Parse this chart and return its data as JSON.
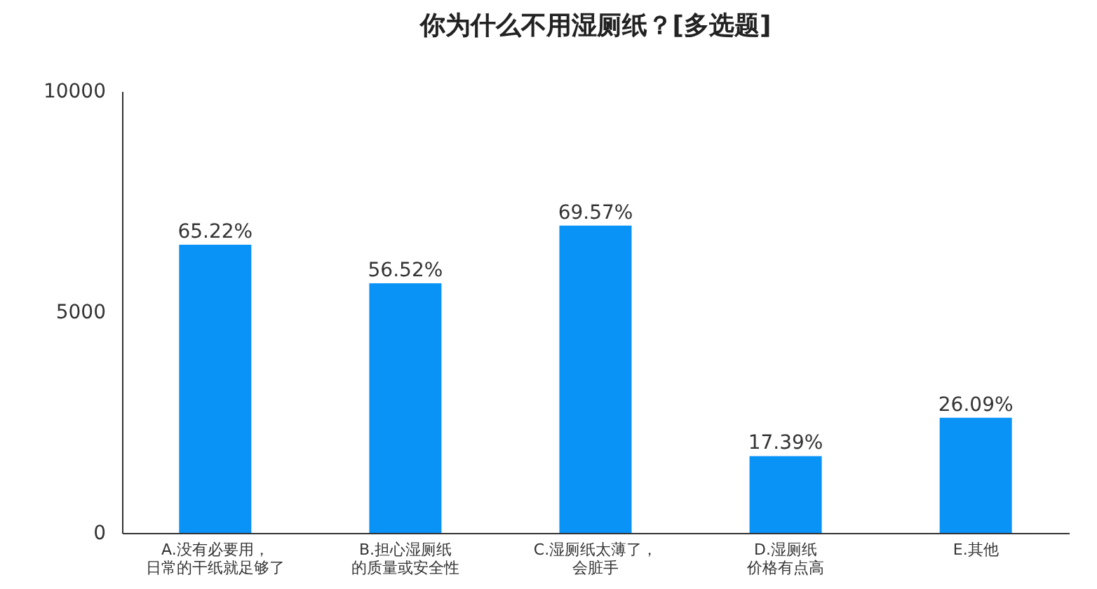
{
  "chart_data": {
    "type": "bar",
    "title": "你为什么不用湿厕纸？[多选题]",
    "categories": [
      "A.没有必要用，日常的干纸就足够了",
      "B.担心湿厕纸的质量或安全性",
      "C.湿厕纸太薄了，会脏手",
      "D.湿厕纸价格有点高",
      "E.其他"
    ],
    "values": [
      6522,
      5652,
      6957,
      1739,
      2609
    ],
    "annotations": [
      {
        "text": "65.22%",
        "x": "A.没有必要用，日常的干纸就足够了",
        "y": 6522
      },
      {
        "text": "56.52%",
        "x": "B.担心湿厕纸的质量或安全性",
        "y": 5652
      },
      {
        "text": "69.57%",
        "x": "C.湿厕纸太薄了，会脏手",
        "y": 6957
      },
      {
        "text": "17.39%",
        "x": "D.湿厕纸价格有点高",
        "y": 1739
      },
      {
        "text": "26.09%",
        "x": "E.其他",
        "y": 2609
      }
    ],
    "color": "#0a93f7",
    "ylim": [
      0,
      10000
    ],
    "yticks": [
      0,
      5000,
      10000
    ],
    "grid": false
  }
}
